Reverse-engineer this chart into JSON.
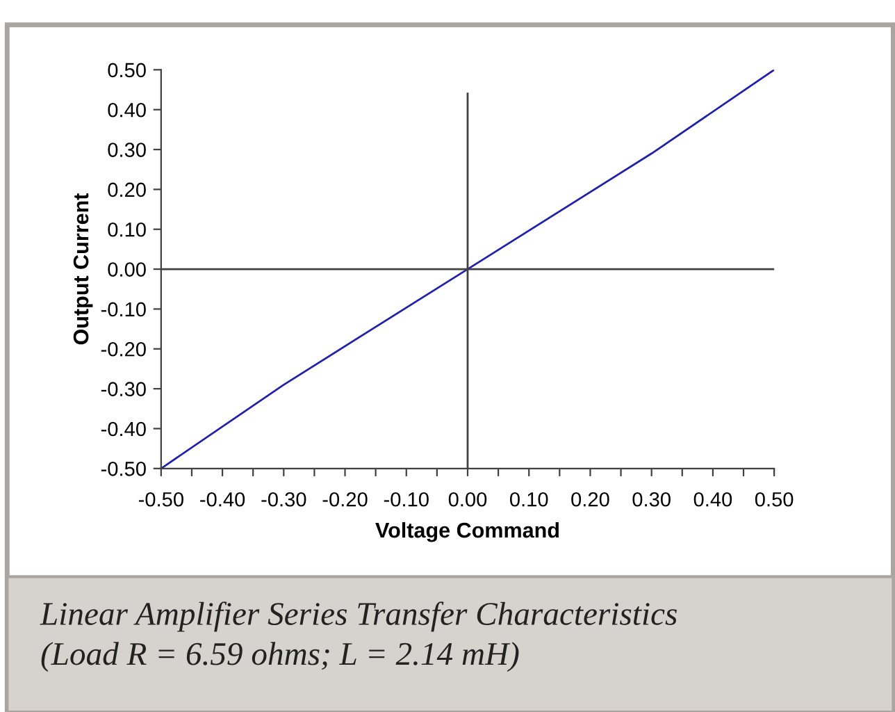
{
  "chart_data": {
    "type": "line",
    "xlabel": "Voltage Command",
    "ylabel": "Output Current",
    "annotations": [
      "Linear Amplifier Series Transfer Characteristics\n(Load R = 6.59 ohms; L = 2.14 mH)"
    ],
    "series": [
      {
        "color": "#2222a8",
        "x": [
          -0.5,
          -0.3,
          0,
          0.3,
          0.5
        ],
        "values": [
          -0.5,
          -0.29,
          0,
          0.29,
          0.5
        ]
      },
      {
        "color": "#404040",
        "x": [
          -0.5,
          0.5
        ],
        "values": [
          0,
          0
        ]
      },
      {
        "color": "#404040",
        "x": [
          0,
          0
        ],
        "values": [
          -0.5,
          0.44
        ]
      }
    ],
    "xlim": [
      -0.5,
      0.5
    ],
    "ylim": [
      -0.5,
      0.5
    ],
    "xticks": [
      {
        "value": -0.5,
        "label": "-0.50"
      },
      {
        "value": -0.45,
        "label": null
      },
      {
        "value": -0.4,
        "label": "-0.40"
      },
      {
        "value": -0.35,
        "label": null
      },
      {
        "value": -0.3,
        "label": "-0.30"
      },
      {
        "value": -0.25,
        "label": null
      },
      {
        "value": -0.2,
        "label": "-0.20"
      },
      {
        "value": -0.15,
        "label": null
      },
      {
        "value": -0.1,
        "label": "-0.10"
      },
      {
        "value": -0.05,
        "label": null
      },
      {
        "value": 0,
        "label": "0.00"
      },
      {
        "value": 0.05,
        "label": null
      },
      {
        "value": 0.1,
        "label": "0.10"
      },
      {
        "value": 0.15,
        "label": null
      },
      {
        "value": 0.2,
        "label": "0.20"
      },
      {
        "value": 0.25,
        "label": null
      },
      {
        "value": 0.3,
        "label": "0.30"
      },
      {
        "value": 0.35,
        "label": null
      },
      {
        "value": 0.4,
        "label": "0.40"
      },
      {
        "value": 0.45,
        "label": null
      },
      {
        "value": 0.5,
        "label": "0.50"
      }
    ],
    "yticks": [
      {
        "value": -0.5,
        "label": "-0.50"
      },
      {
        "value": -0.4,
        "label": "-0.40"
      },
      {
        "value": -0.3,
        "label": "-0.30"
      },
      {
        "value": -0.2,
        "label": "-0.20"
      },
      {
        "value": -0.1,
        "label": "-0.10"
      },
      {
        "value": 0,
        "label": "0.00"
      },
      {
        "value": 0.1,
        "label": "0.10"
      },
      {
        "value": 0.2,
        "label": "0.20"
      },
      {
        "value": 0.3,
        "label": "0.30"
      },
      {
        "value": 0.4,
        "label": "0.40"
      },
      {
        "value": 0.5,
        "label": "0.50"
      }
    ],
    "grid": false,
    "marker": "none",
    "line_style": "solid"
  }
}
